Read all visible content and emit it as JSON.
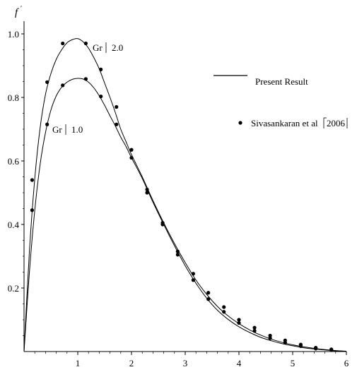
{
  "chart_data": {
    "type": "line",
    "ylabel": "f",
    "ylabel_prime": "′",
    "xlim": [
      0,
      6
    ],
    "ylim": [
      0,
      1.0
    ],
    "x_ticks": [
      "1",
      "2",
      "3",
      "4",
      "5",
      "6"
    ],
    "y_ticks": [
      "0.2",
      "0.4",
      "0.6",
      "0.8",
      "1.0"
    ],
    "grid": false,
    "legend": {
      "placement": "top-right",
      "line_label": "Present Result",
      "point_label": "Sivasankaran et al",
      "point_label_year": "2006"
    },
    "series": [
      {
        "name": "Gr 2.0",
        "label_text": "Gr",
        "label_value": "2.0",
        "curve": [
          [
            0,
            0
          ],
          [
            0.1,
            0.315
          ],
          [
            0.2,
            0.545
          ],
          [
            0.3,
            0.705
          ],
          [
            0.4,
            0.81
          ],
          [
            0.5,
            0.875
          ],
          [
            0.6,
            0.92
          ],
          [
            0.7,
            0.95
          ],
          [
            0.8,
            0.972
          ],
          [
            0.9,
            0.982
          ],
          [
            1.0,
            0.985
          ],
          [
            1.1,
            0.975
          ],
          [
            1.2,
            0.955
          ],
          [
            1.3,
            0.925
          ],
          [
            1.4,
            0.89
          ],
          [
            1.5,
            0.845
          ],
          [
            1.6,
            0.8
          ],
          [
            1.7,
            0.752
          ],
          [
            1.8,
            0.7
          ],
          [
            1.9,
            0.66
          ],
          [
            2.0,
            0.62
          ],
          [
            2.2,
            0.55
          ],
          [
            2.4,
            0.475
          ],
          [
            2.6,
            0.405
          ],
          [
            2.8,
            0.34
          ],
          [
            3.0,
            0.28
          ],
          [
            3.2,
            0.225
          ],
          [
            3.4,
            0.18
          ],
          [
            3.6,
            0.142
          ],
          [
            3.8,
            0.112
          ],
          [
            4.0,
            0.088
          ],
          [
            4.2,
            0.068
          ],
          [
            4.4,
            0.052
          ],
          [
            4.6,
            0.039
          ],
          [
            4.8,
            0.029
          ],
          [
            5.0,
            0.021
          ],
          [
            5.2,
            0.015
          ],
          [
            5.4,
            0.01
          ],
          [
            5.6,
            0.006
          ],
          [
            5.8,
            0.003
          ],
          [
            6.0,
            0.001
          ]
        ],
        "points": [
          [
            0.15,
            0.54
          ],
          [
            0.43,
            0.848
          ],
          [
            0.72,
            0.97
          ],
          [
            1.15,
            0.97
          ],
          [
            1.43,
            0.888
          ],
          [
            1.72,
            0.77
          ],
          [
            2.0,
            0.635
          ],
          [
            2.29,
            0.51
          ],
          [
            2.58,
            0.405
          ],
          [
            2.86,
            0.315
          ],
          [
            3.15,
            0.245
          ],
          [
            3.43,
            0.185
          ],
          [
            3.72,
            0.14
          ],
          [
            4.0,
            0.1
          ],
          [
            4.29,
            0.075
          ],
          [
            4.58,
            0.05
          ],
          [
            4.86,
            0.035
          ],
          [
            5.15,
            0.022
          ],
          [
            5.43,
            0.012
          ],
          [
            5.72,
            0.007
          ]
        ]
      },
      {
        "name": "Gr 1.0",
        "label_text": "Gr",
        "label_value": "1.0",
        "curve": [
          [
            0,
            0
          ],
          [
            0.1,
            0.25
          ],
          [
            0.2,
            0.445
          ],
          [
            0.3,
            0.59
          ],
          [
            0.4,
            0.69
          ],
          [
            0.5,
            0.76
          ],
          [
            0.6,
            0.805
          ],
          [
            0.7,
            0.832
          ],
          [
            0.8,
            0.848
          ],
          [
            0.9,
            0.857
          ],
          [
            1.0,
            0.86
          ],
          [
            1.1,
            0.858
          ],
          [
            1.2,
            0.848
          ],
          [
            1.3,
            0.83
          ],
          [
            1.4,
            0.805
          ],
          [
            1.5,
            0.775
          ],
          [
            1.6,
            0.742
          ],
          [
            1.7,
            0.71
          ],
          [
            1.8,
            0.675
          ],
          [
            1.9,
            0.645
          ],
          [
            2.0,
            0.61
          ],
          [
            2.2,
            0.545
          ],
          [
            2.4,
            0.47
          ],
          [
            2.6,
            0.4
          ],
          [
            2.8,
            0.333
          ],
          [
            3.0,
            0.27
          ],
          [
            3.2,
            0.215
          ],
          [
            3.4,
            0.168
          ],
          [
            3.6,
            0.13
          ],
          [
            3.8,
            0.101
          ],
          [
            4.0,
            0.078
          ],
          [
            4.2,
            0.06
          ],
          [
            4.4,
            0.045
          ],
          [
            4.6,
            0.034
          ],
          [
            4.8,
            0.025
          ],
          [
            5.0,
            0.018
          ],
          [
            5.2,
            0.012
          ],
          [
            5.4,
            0.008
          ],
          [
            5.6,
            0.005
          ],
          [
            5.8,
            0.002
          ],
          [
            6.0,
            0.001
          ]
        ],
        "points": [
          [
            0.15,
            0.445
          ],
          [
            0.43,
            0.715
          ],
          [
            0.72,
            0.838
          ],
          [
            1.15,
            0.858
          ],
          [
            1.43,
            0.803
          ],
          [
            1.72,
            0.715
          ],
          [
            2.0,
            0.61
          ],
          [
            2.29,
            0.5
          ],
          [
            2.58,
            0.4
          ],
          [
            2.86,
            0.305
          ],
          [
            3.15,
            0.225
          ],
          [
            3.43,
            0.165
          ],
          [
            3.72,
            0.125
          ],
          [
            4.0,
            0.09
          ],
          [
            4.29,
            0.065
          ],
          [
            4.58,
            0.042
          ],
          [
            4.86,
            0.028
          ],
          [
            5.15,
            0.017
          ],
          [
            5.43,
            0.009
          ],
          [
            5.72,
            0.005
          ]
        ]
      }
    ]
  }
}
